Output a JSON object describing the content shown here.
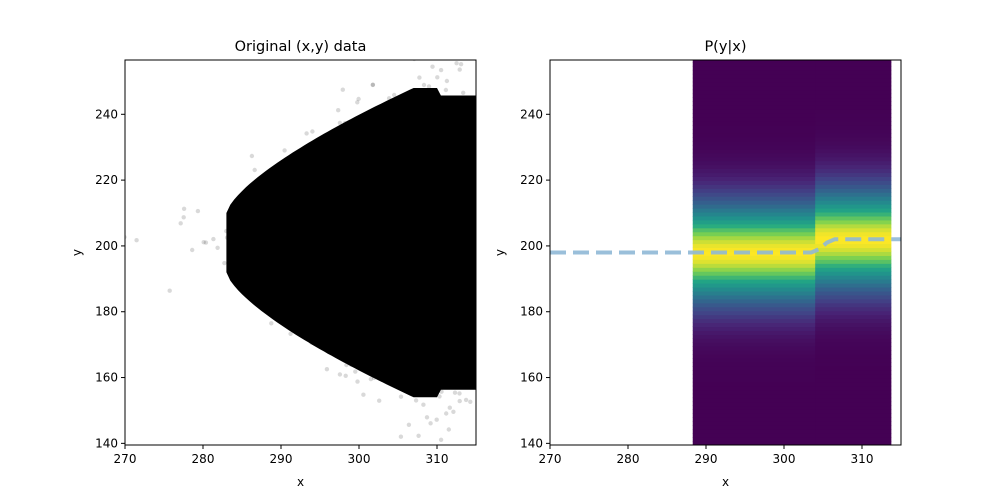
{
  "chart_data": [
    {
      "type": "scatter",
      "title": "Original (x,y) data",
      "xlabel": "x",
      "ylabel": "y",
      "xlim": [
        270,
        315
      ],
      "ylim": [
        139.5,
        256.5
      ],
      "xticks": [
        270,
        280,
        290,
        300,
        310
      ],
      "yticks": [
        140,
        160,
        180,
        200,
        220,
        240
      ],
      "grid": false,
      "marker_color": "#000000",
      "marker_alpha": 0.15,
      "distribution": {
        "description_values": "dense point cloud",
        "x_range": [
          270,
          315
        ],
        "y_center": 202,
        "y_spread_at_x290": [
          175,
          225
        ],
        "y_spread_at_x305": [
          150,
          250
        ]
      }
    },
    {
      "type": "heatmap",
      "title": "P(y|x)",
      "xlabel": "x",
      "ylabel": "y",
      "xlim": [
        270,
        315
      ],
      "ylim": [
        139.5,
        256.5
      ],
      "xticks": [
        270,
        280,
        290,
        300,
        310
      ],
      "yticks": [
        140,
        160,
        180,
        200,
        220,
        240
      ],
      "heatmap_x_range": [
        288.3,
        313.7
      ],
      "heatmap_y_range": [
        139.5,
        256.5
      ],
      "colormap": "viridis",
      "colors": {
        "high": "#fde725",
        "mid": "#21918c",
        "low": "#440154"
      },
      "density_profile": [
        {
          "x_from": 288.3,
          "x_to": 304.0,
          "y_mode": 198,
          "y_sigma": 11
        },
        {
          "x_from": 304.0,
          "x_to": 313.7,
          "y_mode": 202,
          "y_sigma": 11
        }
      ],
      "mode_line": {
        "style": "dashed",
        "color": "#8fb8d6",
        "x": [
          270,
          288.3,
          303.5,
          304.5,
          305.5,
          306.5,
          315
        ],
        "y": [
          198,
          198,
          198,
          199,
          201,
          202,
          202
        ]
      }
    }
  ]
}
